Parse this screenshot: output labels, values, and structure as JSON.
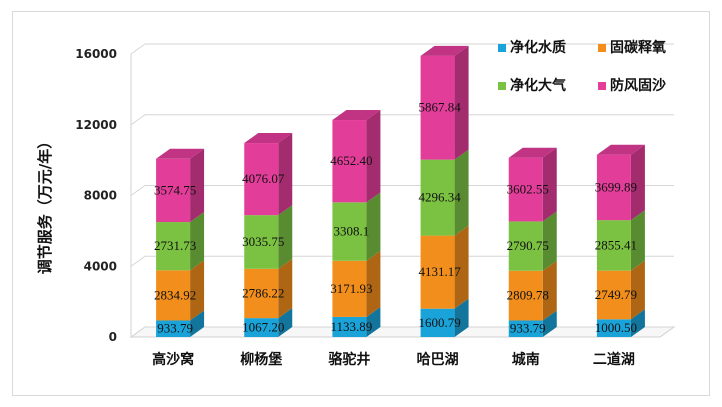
{
  "chart_data": {
    "type": "bar",
    "stacked": true,
    "three_d": true,
    "ylabel": "调节服务（万元/年）",
    "xlabel": "",
    "ylim": [
      0,
      16000
    ],
    "yticks": [
      0,
      4000,
      8000,
      12000,
      16000
    ],
    "grid": true,
    "legend_position": "top-right",
    "categories": [
      "高沙窝",
      "柳杨堡",
      "骆驼井",
      "哈巴湖",
      "城南",
      "二道湖"
    ],
    "series": [
      {
        "name": "净化水质",
        "color": "#1aa3d9",
        "values": [
          933.79,
          1067.2,
          1133.89,
          1600.79,
          933.79,
          1000.5
        ],
        "labels": [
          "933.79",
          "1067.20",
          "1133.89",
          "1600.79",
          "933.79",
          "1000.50"
        ]
      },
      {
        "name": "固碳释氧",
        "color": "#f28e1c",
        "values": [
          2834.92,
          2786.22,
          3171.93,
          4131.17,
          2809.78,
          2749.79
        ],
        "labels": [
          "2834.92",
          "2786.22",
          "3171.93",
          "4131.17",
          "2809.78",
          "2749.79"
        ]
      },
      {
        "name": "净化大气",
        "color": "#7cc242",
        "values": [
          2731.73,
          3035.75,
          3308.1,
          4296.34,
          2790.75,
          2855.41
        ],
        "labels": [
          "2731.73",
          "3035.75",
          "3308.1",
          "4296.34",
          "2790.75",
          "2855.41"
        ]
      },
      {
        "name": "防风固沙",
        "color": "#e33d9a",
        "values": [
          3574.75,
          4076.07,
          4652.4,
          5867.84,
          3602.55,
          3699.89
        ],
        "labels": [
          "3574.75",
          "4076.07",
          "4652.40",
          "5867.84",
          "3602.55",
          "3699.89"
        ]
      }
    ]
  }
}
